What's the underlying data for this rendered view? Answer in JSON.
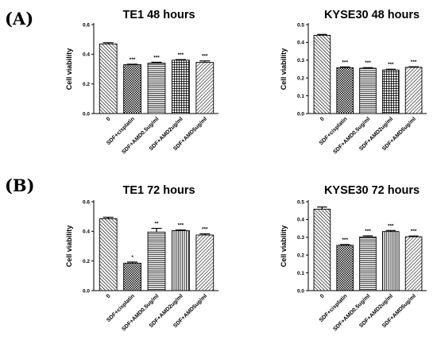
{
  "panel_labels": [
    "(A)",
    "(B)"
  ],
  "chart_data": [
    {
      "type": "bar",
      "title": "TE1 48 hours",
      "ylabel": "Cell viability",
      "ylim": [
        0,
        0.6
      ],
      "yticks": [
        "0.0",
        "0.2",
        "0.4",
        "0.6"
      ],
      "yticks_values": [
        0,
        0.2,
        0.4,
        0.6
      ],
      "categories": [
        "0",
        "SDF+cisplatin",
        "SDF+AMD0.5ug/ml",
        "SDF+AMD2ug/ml",
        "SDF+AMD5ug/ml"
      ],
      "values": [
        0.47,
        0.33,
        0.34,
        0.36,
        0.345
      ],
      "errors": [
        0.008,
        0.003,
        0.006,
        0.004,
        0.01
      ],
      "significance": [
        "",
        "***",
        "***",
        "***",
        "***"
      ]
    },
    {
      "type": "bar",
      "title": "KYSE30 48 hours",
      "ylabel": "Cell viability",
      "ylim": [
        0,
        0.5
      ],
      "yticks": [
        "0.0",
        "0.1",
        "0.2",
        "0.3",
        "0.4",
        "0.5"
      ],
      "yticks_values": [
        0,
        0.1,
        0.2,
        0.3,
        0.4,
        0.5
      ],
      "categories": [
        "0",
        "SDF+cisplatin",
        "SDF+AMD0.5ug/ml",
        "SDF+AMD2ug/ml",
        "SDF+AMD5ug/ml"
      ],
      "values": [
        0.44,
        0.258,
        0.255,
        0.245,
        0.26
      ],
      "errors": [
        0.005,
        0.004,
        0.003,
        0.004,
        0.003
      ],
      "significance": [
        "",
        "***",
        "***",
        "***",
        "***"
      ]
    },
    {
      "type": "bar",
      "title": "TE1 72 hours",
      "ylabel": "Cell viability",
      "ylim": [
        0,
        0.6
      ],
      "yticks": [
        "0.0",
        "0.2",
        "0.4",
        "0.6"
      ],
      "yticks_values": [
        0,
        0.2,
        0.4,
        0.6
      ],
      "categories": [
        "0",
        "SDF+cisplatin",
        "SDF+AMD0.5ug/ml",
        "SDF+AMD2ug/ml",
        "SDF+AMD5ug/ml"
      ],
      "values": [
        0.485,
        0.185,
        0.395,
        0.405,
        0.375
      ],
      "errors": [
        0.01,
        0.008,
        0.025,
        0.004,
        0.008
      ],
      "significance": [
        "",
        "*",
        "**",
        "***",
        "***"
      ]
    },
    {
      "type": "bar",
      "title": "KYSE30 72 hours",
      "ylabel": "Cell viability",
      "ylim": [
        0,
        0.5
      ],
      "yticks": [
        "0.0",
        "0.1",
        "0.2",
        "0.3",
        "0.4",
        "0.5"
      ],
      "yticks_values": [
        0,
        0.1,
        0.2,
        0.3,
        0.4,
        0.5
      ],
      "categories": [
        "0",
        "SDF+cisplatin",
        "SDF+AMD0.5ug/ml",
        "SDF+AMD2ug/ml",
        "SDF+AMD5ug/ml"
      ],
      "values": [
        0.458,
        0.255,
        0.302,
        0.332,
        0.303
      ],
      "errors": [
        0.012,
        0.004,
        0.006,
        0.006,
        0.004
      ],
      "significance": [
        "",
        "***",
        "***",
        "***",
        "***"
      ]
    }
  ],
  "colors": {
    "ink": "#000000",
    "background": "#ffffff"
  },
  "bar_patterns": [
    "diag-down",
    "checker",
    "horizontal",
    "grid",
    "diag-up"
  ]
}
